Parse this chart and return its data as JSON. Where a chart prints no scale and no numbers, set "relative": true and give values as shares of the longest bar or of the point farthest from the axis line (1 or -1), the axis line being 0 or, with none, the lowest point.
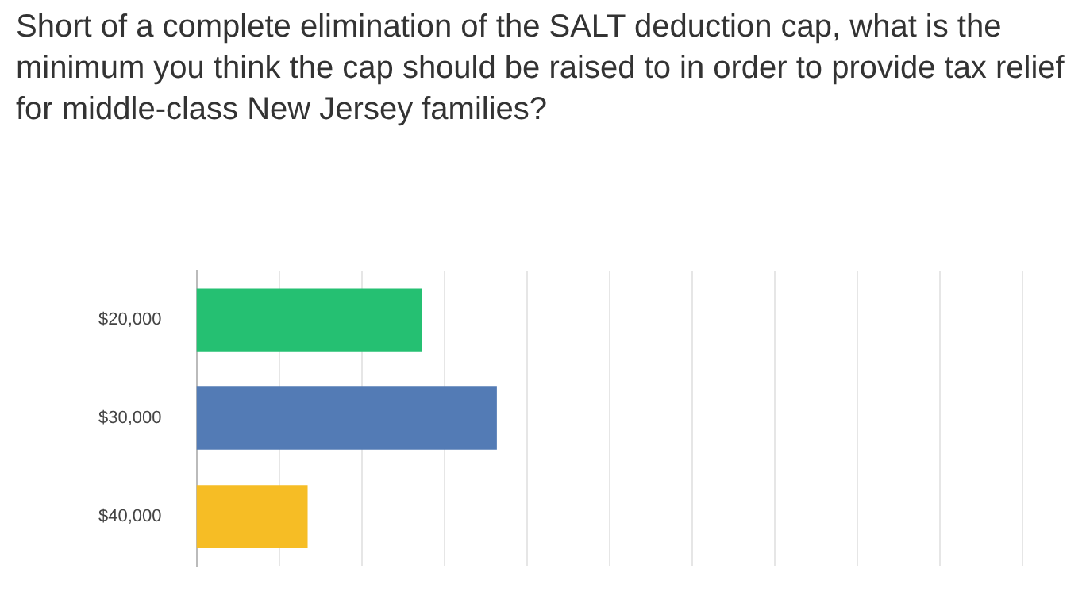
{
  "chart_data": {
    "type": "bar",
    "orientation": "horizontal",
    "relative": true,
    "title": "Short of a complete elimination of the SALT deduction cap, what is the minimum you think the cap should be raised to in order to provide tax relief for middle-class New Jersey families?",
    "categories": [
      "$20,000",
      "$30,000",
      "$40,000"
    ],
    "values": [
      0.75,
      1,
      0.37
    ],
    "colors": [
      "#25c072",
      "#537bb5",
      "#f6bd25"
    ],
    "grid": "x",
    "legend": false
  }
}
